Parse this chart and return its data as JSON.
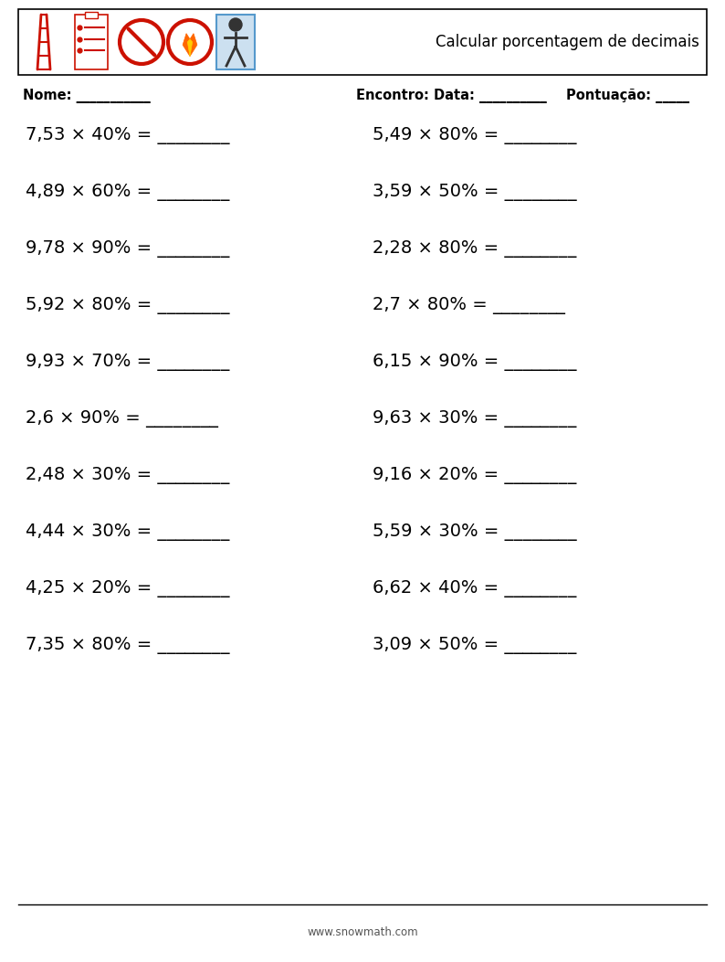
{
  "title": "Calcular porcentagem de decimais",
  "background_color": "#ffffff",
  "border_color": "#000000",
  "text_color": "#000000",
  "footer_text": "www.snowmath.com",
  "left_problems": [
    "7,53 × 40% = ________",
    "4,89 × 60% = ________",
    "9,78 × 90% = ________",
    "5,92 × 80% = ________",
    "9,93 × 70% = ________",
    "2,6 × 90% = ________",
    "2,48 × 30% = ________",
    "4,44 × 30% = ________",
    "4,25 × 20% = ________",
    "7,35 × 80% = ________"
  ],
  "right_problems": [
    "5,49 × 80% = ________",
    "3,59 × 50% = ________",
    "2,28 × 80% = ________",
    "2,7 × 80% = ________",
    "6,15 × 90% = ________",
    "9,63 × 30% = ________",
    "9,16 × 20% = ________",
    "5,59 × 30% = ________",
    "6,62 × 40% = ________",
    "3,09 × 50% = ________"
  ],
  "font_size_problems": 14,
  "font_size_header_title": 12,
  "font_size_labels": 10.5,
  "font_size_footer": 8.5,
  "header_box_border": "#000000",
  "header_box_color": "#ffffff",
  "icon_red": "#cc1100",
  "icon_orange": "#ff6600",
  "icon_blue": "#5599cc",
  "icon_blue_bg": "#cce0f0",
  "icon_dark": "#333333"
}
